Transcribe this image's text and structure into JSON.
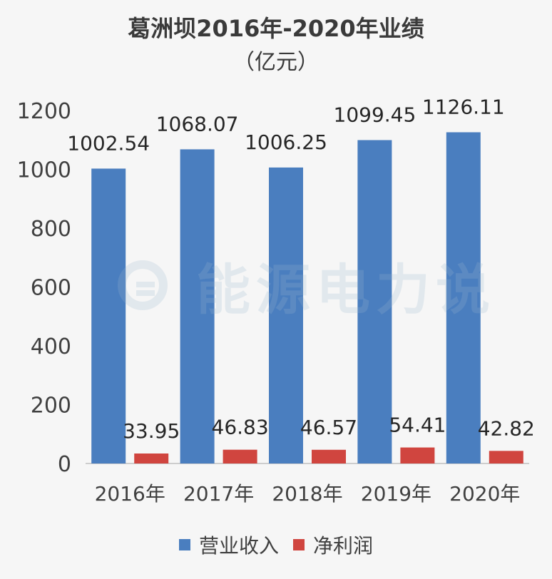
{
  "chart_data": {
    "type": "bar",
    "title": "葛洲坝2016年-2020年业绩",
    "subtitle": "（亿元）",
    "categories": [
      "2016年",
      "2017年",
      "2018年",
      "2019年",
      "2020年"
    ],
    "series": [
      {
        "name": "营业收入",
        "color": "#4a7ebf",
        "values": [
          1002.54,
          1068.07,
          1006.25,
          1099.45,
          1126.11
        ]
      },
      {
        "name": "净利润",
        "color": "#d0453f",
        "values": [
          33.95,
          46.83,
          46.57,
          54.41,
          42.82
        ]
      }
    ],
    "data_labels": [
      [
        "1002.54",
        "1068.07",
        "1006.25",
        "1099.45",
        "1126.11"
      ],
      [
        "33.95",
        "46.83",
        "46.57",
        "54.41",
        "42.82"
      ]
    ],
    "yticks": [
      0,
      200,
      400,
      600,
      800,
      1000,
      1200
    ],
    "ylim": [
      0,
      1200
    ],
    "grid": false,
    "legend": "bottom"
  },
  "watermark": {
    "text": "能源电力说",
    "icon": "e-logo-icon"
  }
}
